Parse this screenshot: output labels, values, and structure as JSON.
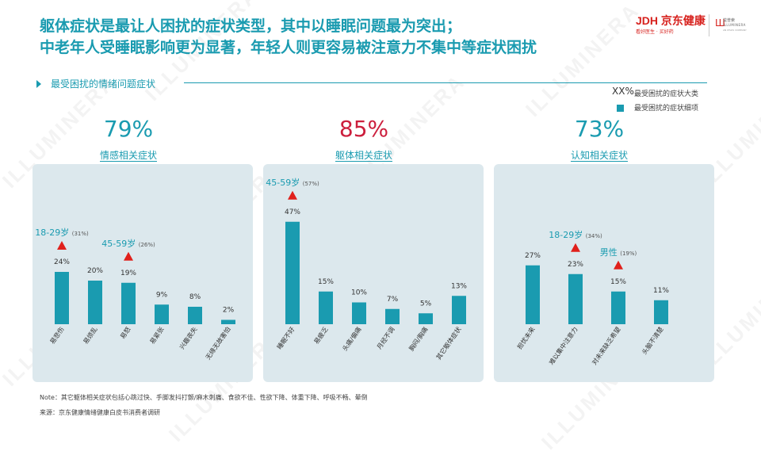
{
  "header": {
    "title_line1": "躯体症状是最让人困扰的症状类型，其中以睡眠问题最为突出；",
    "title_line2": "中老年人受睡眠影响更为显著，年轻人则更容易被注意力不集中等症状困扰"
  },
  "brand": {
    "jd_name": "JDH 京东健康",
    "jd_tagline": "看好医生 · 买好药",
    "illuminera_mark": "Ш",
    "illuminera_name": "益普索",
    "illuminera_en": "ILLUMINERA",
    "illuminera_sub": "AN IPSOS COMPANY"
  },
  "watermark_text": "ILLUMINERA",
  "section": {
    "title": "最受困扰的情绪问题症状"
  },
  "legend": [
    {
      "key": "XX%",
      "label": "最受困扰的症状大类"
    },
    {
      "key": "square",
      "label": "最受困扰的症状细项"
    }
  ],
  "colors": {
    "accent": "#1a9bb0",
    "highlight": "#cc1f3d",
    "marker": "#e0201b",
    "panel": "#dce8ed",
    "bar": "#1a9bb0"
  },
  "chart_data": [
    {
      "type": "bar",
      "percent": "79%",
      "title": "情感相关症状",
      "categories": [
        "易悲伤",
        "易烦乱",
        "易怒",
        "易紧张",
        "兴趣丧失",
        "无缘无故害怕"
      ],
      "values": [
        24,
        20,
        19,
        9,
        8,
        2
      ],
      "annotations": [
        {
          "category": "易悲伤",
          "group": "18-29岁",
          "share": "(31%)"
        },
        {
          "category": "易怒",
          "group": "45-59岁",
          "share": "(26%)"
        }
      ]
    },
    {
      "type": "bar",
      "percent": "85%",
      "title": "躯体相关症状",
      "categories": [
        "睡眠不好",
        "易疲乏",
        "头痛/偏痛",
        "月经不调",
        "胸闷/胸痛",
        "其它躯体症状"
      ],
      "values": [
        47,
        15,
        10,
        7,
        5,
        13
      ],
      "annotations": [
        {
          "category": "睡眠不好",
          "group": "45-59岁",
          "share": "(57%)"
        }
      ]
    },
    {
      "type": "bar",
      "percent": "73%",
      "title": "认知相关症状",
      "categories": [
        "担忧未来",
        "难以集中注意力",
        "对未来缺乏希望",
        "头脑不清楚"
      ],
      "values": [
        27,
        23,
        15,
        11
      ],
      "annotations": [
        {
          "category": "难以集中注意力",
          "group": "18-29岁",
          "share": "(34%)"
        },
        {
          "category": "对未来缺乏希望",
          "group": "男性",
          "share": "(19%)"
        }
      ]
    }
  ],
  "footer": {
    "note": "Note：其它躯体相关症状包括心跳过快、手脚发抖打颤/麻木刺痛、食欲不佳、性欲下降、体重下降、呼吸不畅、晕倒",
    "source": "来源：京东健康情绪健康白皮书消费者调研"
  }
}
